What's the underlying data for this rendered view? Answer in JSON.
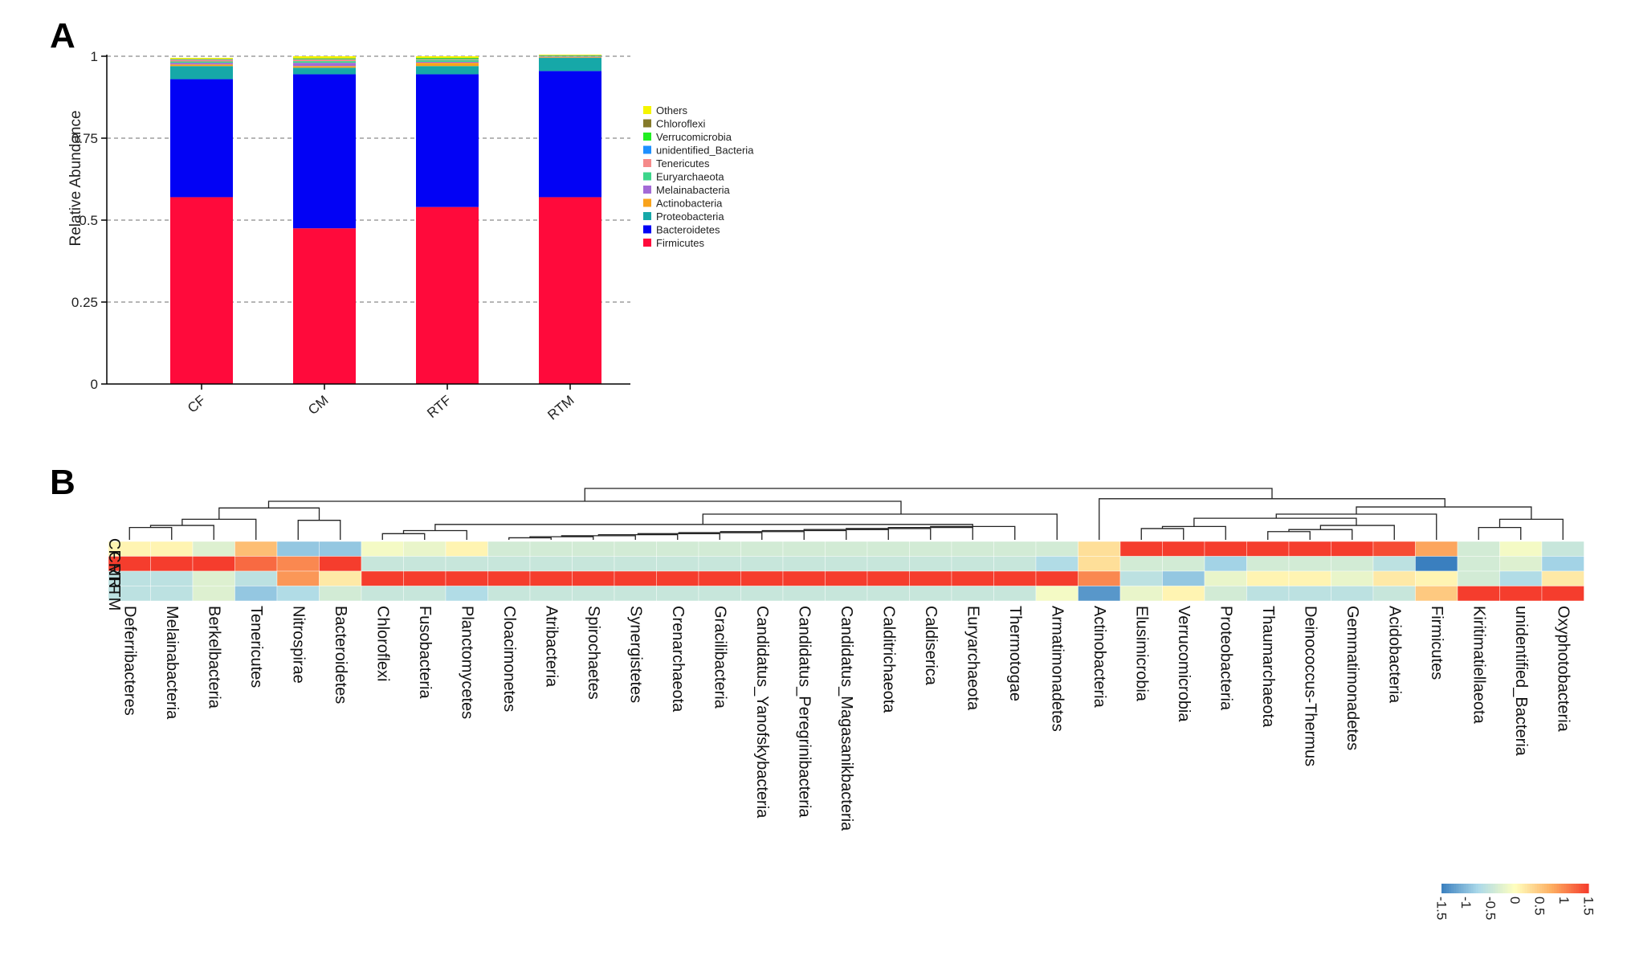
{
  "panels": {
    "a": "A",
    "b": "B"
  },
  "chart_data": [
    {
      "type": "bar",
      "subtype": "stacked-100",
      "panel": "A",
      "ylabel": "Relative Abundance",
      "xlabel": "",
      "ylim": [
        0,
        1
      ],
      "yticks": [
        0,
        0.25,
        0.5,
        0.75,
        1
      ],
      "ytick_labels": [
        "0",
        "0.25",
        "0.5",
        "0.75",
        "1"
      ],
      "grid": "dashed horizontal",
      "legend_position": "right",
      "categories": [
        "CF",
        "CM",
        "RTF",
        "RTM"
      ],
      "series": [
        {
          "name": "Firmicutes",
          "color": "#ff0a3b",
          "values": [
            0.57,
            0.475,
            0.54,
            0.57
          ]
        },
        {
          "name": "Bacteroidetes",
          "color": "#0202f5",
          "values": [
            0.36,
            0.47,
            0.405,
            0.385
          ]
        },
        {
          "name": "Proteobacteria",
          "color": "#16a8a8",
          "values": [
            0.04,
            0.02,
            0.025,
            0.04
          ]
        },
        {
          "name": "Actinobacteria",
          "color": "#f9a31b",
          "values": [
            0.005,
            0.005,
            0.01,
            0.002
          ]
        },
        {
          "name": "Melainabacteria",
          "color": "#a36ad6",
          "values": [
            0.005,
            0.01,
            0.003,
            0.001
          ]
        },
        {
          "name": "Euryarchaeota",
          "color": "#3cd68b",
          "values": [
            0.004,
            0.005,
            0.005,
            0.001
          ]
        },
        {
          "name": "Tenericutes",
          "color": "#f58a8a",
          "values": [
            0.005,
            0.005,
            0.002,
            0.001
          ]
        },
        {
          "name": "unidentified_Bacteria",
          "color": "#1e90ff",
          "values": [
            0.001,
            0.001,
            0.001,
            0.001
          ]
        },
        {
          "name": "Verrucomicrobia",
          "color": "#22ee22",
          "values": [
            0.001,
            0.002,
            0.003,
            0.001
          ]
        },
        {
          "name": "Chloroflexi",
          "color": "#857a2a",
          "values": [
            0.001,
            0.001,
            0.001,
            0.001
          ]
        },
        {
          "name": "Others",
          "color": "#f5f500",
          "values": [
            0.003,
            0.006,
            0.005,
            0.002
          ]
        }
      ],
      "legend_order": [
        "Others",
        "Chloroflexi",
        "Verrucomicrobia",
        "unidentified_Bacteria",
        "Tenericutes",
        "Euryarchaeota",
        "Melainabacteria",
        "Actinobacteria",
        "Proteobacteria",
        "Bacteroidetes",
        "Firmicutes"
      ]
    },
    {
      "type": "heatmap",
      "panel": "B",
      "rows": [
        "CF",
        "CM",
        "RTF",
        "RTM"
      ],
      "columns": [
        "Deferribacteres",
        "Melainabacteria",
        "Berkelbacteria",
        "Tenericutes",
        "Nitrospirae",
        "Bacteroidetes",
        "Chloroflexi",
        "Fusobacteria",
        "Planctomycetes",
        "Cloacimonetes",
        "Atribacteria",
        "Spirochaetes",
        "Synergistetes",
        "Crenarchaeota",
        "Gracilibacteria",
        "Candidatus_Yanofskybacteria",
        "Candidatus_Peregrinibacteria",
        "Candidatus_Magasanikbacteria",
        "Calditrichaeota",
        "Caldiserica",
        "Euryarchaeota",
        "Thermotogae",
        "Armatimonadetes",
        "Actinobacteria",
        "Elusimicrobia",
        "Verrucomicrobia",
        "Proteobacteria",
        "Thaumarchaeota",
        "Deinococcus-Thermus",
        "Gemmatimonadetes",
        "Acidobacteria",
        "Firmicutes",
        "Kiritimatiellaeota",
        "unidentified_Bacteria",
        "Oxyphotobacteria"
      ],
      "values": [
        [
          0.1,
          0.1,
          -0.3,
          0.6,
          -0.9,
          -0.9,
          -0.1,
          -0.2,
          0.1,
          -0.4,
          -0.4,
          -0.4,
          -0.4,
          -0.4,
          -0.4,
          -0.4,
          -0.4,
          -0.4,
          -0.4,
          -0.4,
          -0.4,
          -0.4,
          -0.4,
          0.3,
          1.5,
          1.5,
          1.5,
          1.5,
          1.5,
          1.5,
          1.4,
          0.8,
          -0.4,
          -0.1,
          -0.5
        ],
        [
          1.5,
          1.5,
          1.5,
          1.2,
          1.0,
          1.5,
          -0.5,
          -0.5,
          -0.5,
          -0.5,
          -0.5,
          -0.5,
          -0.5,
          -0.5,
          -0.5,
          -0.5,
          -0.5,
          -0.5,
          -0.5,
          -0.5,
          -0.5,
          -0.5,
          -0.7,
          0.3,
          -0.4,
          -0.4,
          -0.8,
          -0.4,
          -0.4,
          -0.4,
          -0.6,
          -1.5,
          -0.4,
          -0.3,
          -0.8
        ],
        [
          -0.6,
          -0.6,
          -0.3,
          -0.6,
          0.9,
          0.2,
          1.5,
          1.5,
          1.5,
          1.5,
          1.5,
          1.5,
          1.5,
          1.5,
          1.5,
          1.5,
          1.5,
          1.5,
          1.5,
          1.5,
          1.5,
          1.5,
          1.5,
          1.0,
          -0.6,
          -0.9,
          -0.2,
          0.1,
          0.1,
          -0.2,
          0.2,
          0.1,
          -0.4,
          -0.7,
          0.2
        ],
        [
          -0.6,
          -0.6,
          -0.3,
          -0.9,
          -0.7,
          -0.4,
          -0.5,
          -0.5,
          -0.7,
          -0.5,
          -0.5,
          -0.5,
          -0.5,
          -0.5,
          -0.5,
          -0.5,
          -0.5,
          -0.5,
          -0.5,
          -0.5,
          -0.5,
          -0.5,
          -0.1,
          -1.3,
          -0.2,
          0.1,
          -0.4,
          -0.6,
          -0.6,
          -0.6,
          -0.5,
          0.5,
          1.5,
          1.5,
          1.5
        ]
      ],
      "colorbar": {
        "min": -1.5,
        "max": 1.5,
        "ticks": [
          "-1.5",
          "-1",
          "-0.5",
          "0",
          "0.5",
          "1",
          "1.5"
        ],
        "low_color": "#3a7fbf",
        "mid_color": "#ffffbf",
        "high_color": "#f53d2d"
      }
    }
  ]
}
